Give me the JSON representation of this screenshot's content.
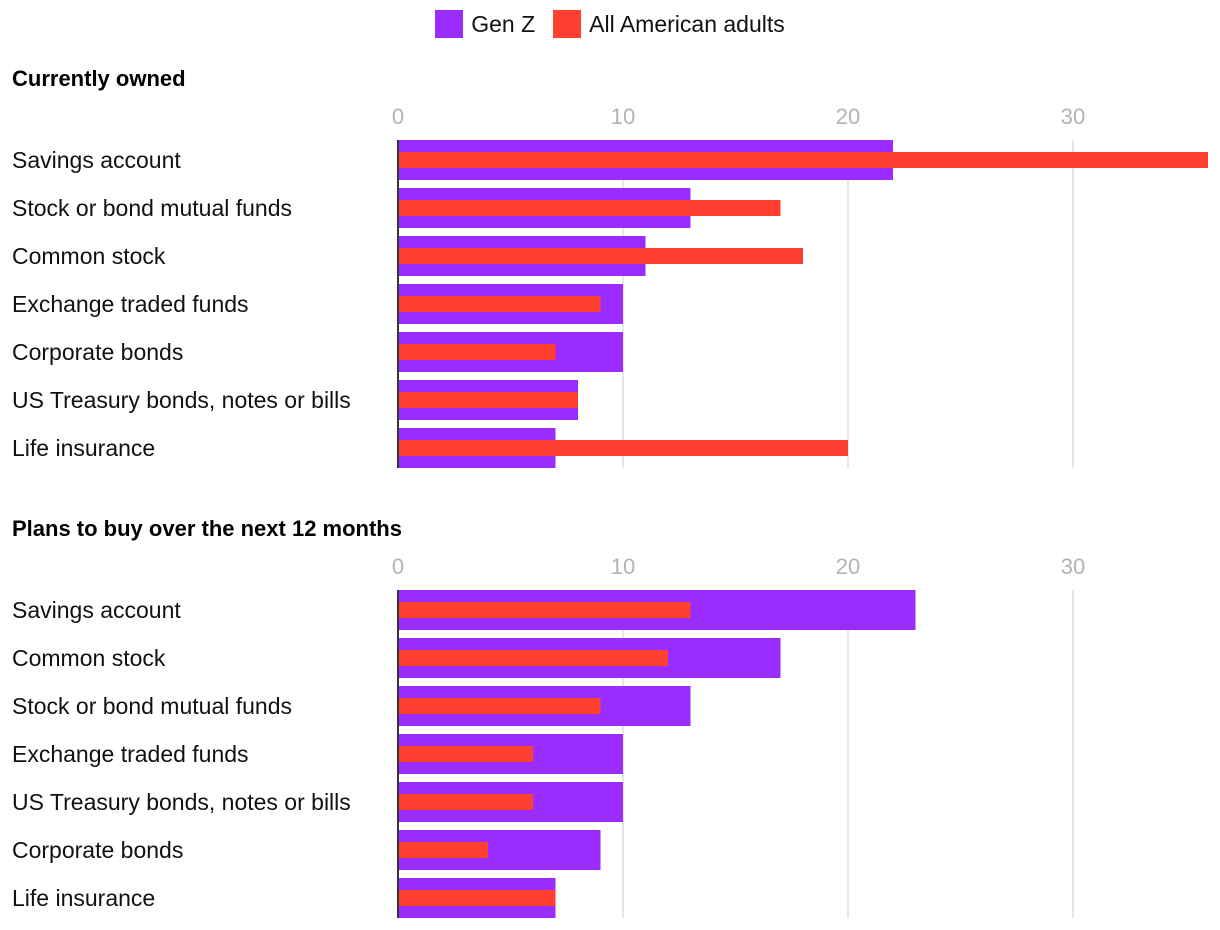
{
  "legend": {
    "items": [
      {
        "label": "Gen Z",
        "color": "#9b2cff"
      },
      {
        "label": "All American adults",
        "color": "#ff4030"
      }
    ]
  },
  "chart_data": [
    {
      "type": "bar",
      "orientation": "horizontal",
      "title": "Currently owned",
      "categories": [
        "Savings account",
        "Stock or bond mutual funds",
        "Common stock",
        "Exchange traded funds",
        "Corporate bonds",
        "US Treasury bonds, notes or bills",
        "Life insurance"
      ],
      "series": [
        {
          "name": "Gen Z",
          "color": "#9b2cff",
          "values": [
            22,
            13,
            11,
            10,
            10,
            8,
            7
          ]
        },
        {
          "name": "All American adults",
          "color": "#ff4030",
          "values": [
            36,
            17,
            18,
            9,
            7,
            8,
            20
          ]
        }
      ],
      "xticks": [
        0,
        10,
        20,
        30
      ],
      "xlim": [
        0,
        36
      ],
      "grid": true
    },
    {
      "type": "bar",
      "orientation": "horizontal",
      "title": "Plans to buy over the next 12 months",
      "categories": [
        "Savings account",
        "Common stock",
        "Stock or bond mutual funds",
        "Exchange traded funds",
        "US Treasury bonds, notes or bills",
        "Corporate bonds",
        "Life insurance"
      ],
      "series": [
        {
          "name": "Gen Z",
          "color": "#9b2cff",
          "values": [
            23,
            17,
            13,
            10,
            10,
            9,
            7
          ]
        },
        {
          "name": "All American adults",
          "color": "#ff4030",
          "values": [
            13,
            12,
            9,
            6,
            6,
            4,
            7
          ]
        }
      ],
      "xticks": [
        0,
        10,
        20,
        30
      ],
      "xlim": [
        0,
        36
      ],
      "grid": true
    }
  ]
}
